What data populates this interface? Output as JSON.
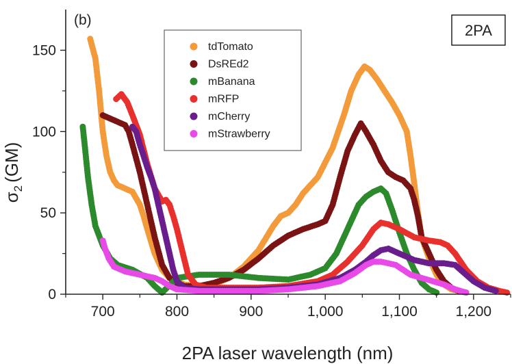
{
  "chart_data": {
    "type": "scatter",
    "panel_label": "(b)",
    "badge": "2PA",
    "xlabel": "2PA laser wavelength (nm)",
    "ylabel_main": "σ",
    "ylabel_sub": "2",
    "ylabel_unit": "(GM)",
    "xlim": [
      650,
      1250
    ],
    "ylim": [
      0,
      175
    ],
    "x_ticks": [
      700,
      800,
      900,
      1000,
      1100,
      1200
    ],
    "x_tick_labels": [
      "700",
      "800",
      "900",
      "1,000",
      "1,100",
      "1,200"
    ],
    "y_ticks": [
      0,
      50,
      100,
      150
    ],
    "y_tick_labels": [
      "0",
      "50",
      "100",
      "150"
    ],
    "legend_position": "top-left",
    "series": [
      {
        "name": "tdTomato",
        "color": "#f39a3a",
        "points": [
          [
            683,
            157
          ],
          [
            690,
            145
          ],
          [
            695,
            125
          ],
          [
            700,
            100
          ],
          [
            705,
            85
          ],
          [
            710,
            75
          ],
          [
            715,
            70
          ],
          [
            720,
            67
          ],
          [
            730,
            65
          ],
          [
            740,
            63
          ],
          [
            750,
            55
          ],
          [
            755,
            48
          ],
          [
            760,
            40
          ],
          [
            770,
            25
          ],
          [
            780,
            15
          ],
          [
            790,
            10
          ],
          [
            800,
            8
          ],
          [
            810,
            6
          ],
          [
            830,
            5
          ],
          [
            850,
            6
          ],
          [
            870,
            10
          ],
          [
            890,
            17
          ],
          [
            910,
            27
          ],
          [
            930,
            42
          ],
          [
            940,
            48
          ],
          [
            950,
            50
          ],
          [
            960,
            55
          ],
          [
            970,
            62
          ],
          [
            990,
            72
          ],
          [
            1010,
            90
          ],
          [
            1025,
            110
          ],
          [
            1035,
            125
          ],
          [
            1045,
            135
          ],
          [
            1053,
            140
          ],
          [
            1060,
            138
          ],
          [
            1070,
            132
          ],
          [
            1080,
            125
          ],
          [
            1090,
            118
          ],
          [
            1100,
            110
          ],
          [
            1110,
            100
          ],
          [
            1115,
            85
          ],
          [
            1120,
            68
          ],
          [
            1125,
            50
          ],
          [
            1130,
            35
          ],
          [
            1140,
            22
          ],
          [
            1150,
            12
          ],
          [
            1160,
            6
          ],
          [
            1170,
            3
          ],
          [
            1180,
            2
          ]
        ]
      },
      {
        "name": "DsREd2",
        "color": "#7a1414",
        "points": [
          [
            700,
            110
          ],
          [
            710,
            108
          ],
          [
            720,
            106
          ],
          [
            730,
            104
          ],
          [
            735,
            100
          ],
          [
            740,
            92
          ],
          [
            750,
            75
          ],
          [
            760,
            55
          ],
          [
            770,
            35
          ],
          [
            780,
            18
          ],
          [
            790,
            10
          ],
          [
            800,
            7
          ],
          [
            810,
            5
          ],
          [
            830,
            5
          ],
          [
            850,
            7
          ],
          [
            870,
            10
          ],
          [
            890,
            15
          ],
          [
            910,
            22
          ],
          [
            930,
            30
          ],
          [
            950,
            36
          ],
          [
            970,
            40
          ],
          [
            990,
            43
          ],
          [
            1000,
            45
          ],
          [
            1010,
            55
          ],
          [
            1020,
            72
          ],
          [
            1030,
            88
          ],
          [
            1040,
            98
          ],
          [
            1048,
            105
          ],
          [
            1055,
            100
          ],
          [
            1065,
            92
          ],
          [
            1075,
            82
          ],
          [
            1085,
            75
          ],
          [
            1095,
            72
          ],
          [
            1105,
            70
          ],
          [
            1115,
            65
          ],
          [
            1120,
            58
          ],
          [
            1125,
            48
          ],
          [
            1130,
            35
          ],
          [
            1140,
            25
          ],
          [
            1150,
            15
          ],
          [
            1160,
            8
          ],
          [
            1170,
            4
          ],
          [
            1180,
            2
          ],
          [
            1190,
            1
          ]
        ]
      },
      {
        "name": "mBanana",
        "color": "#2c8a2c",
        "points": [
          [
            673,
            103
          ],
          [
            676,
            90
          ],
          [
            680,
            72
          ],
          [
            685,
            55
          ],
          [
            690,
            42
          ],
          [
            700,
            30
          ],
          [
            710,
            22
          ],
          [
            720,
            18
          ],
          [
            740,
            15
          ],
          [
            760,
            10
          ],
          [
            770,
            5
          ],
          [
            780,
            1
          ],
          [
            800,
            10
          ],
          [
            830,
            12
          ],
          [
            870,
            12
          ],
          [
            910,
            10
          ],
          [
            950,
            9
          ],
          [
            980,
            12
          ],
          [
            1000,
            16
          ],
          [
            1015,
            25
          ],
          [
            1025,
            35
          ],
          [
            1035,
            45
          ],
          [
            1045,
            55
          ],
          [
            1055,
            60
          ],
          [
            1065,
            63
          ],
          [
            1075,
            65
          ],
          [
            1082,
            62
          ],
          [
            1090,
            52
          ],
          [
            1095,
            45
          ],
          [
            1100,
            38
          ],
          [
            1110,
            25
          ],
          [
            1120,
            15
          ],
          [
            1130,
            7
          ],
          [
            1140,
            3
          ],
          [
            1150,
            1
          ]
        ]
      },
      {
        "name": "mRFP",
        "color": "#e8302c",
        "points": [
          [
            718,
            120
          ],
          [
            725,
            123
          ],
          [
            733,
            118
          ],
          [
            740,
            110
          ],
          [
            750,
            98
          ],
          [
            760,
            80
          ],
          [
            770,
            65
          ],
          [
            780,
            57
          ],
          [
            785,
            58
          ],
          [
            790,
            55
          ],
          [
            795,
            48
          ],
          [
            800,
            40
          ],
          [
            808,
            25
          ],
          [
            815,
            12
          ],
          [
            825,
            6
          ],
          [
            840,
            4
          ],
          [
            870,
            4
          ],
          [
            910,
            4
          ],
          [
            950,
            5
          ],
          [
            990,
            8
          ],
          [
            1010,
            12
          ],
          [
            1030,
            20
          ],
          [
            1050,
            30
          ],
          [
            1065,
            40
          ],
          [
            1075,
            44
          ],
          [
            1085,
            43
          ],
          [
            1100,
            40
          ],
          [
            1120,
            35
          ],
          [
            1140,
            33
          ],
          [
            1155,
            32
          ],
          [
            1165,
            30
          ],
          [
            1175,
            25
          ],
          [
            1190,
            15
          ],
          [
            1205,
            8
          ],
          [
            1220,
            4
          ],
          [
            1235,
            2
          ],
          [
            1245,
            1
          ]
        ]
      },
      {
        "name": "mCherry",
        "color": "#6a1d8c",
        "points": [
          [
            740,
            103
          ],
          [
            745,
            100
          ],
          [
            750,
            92
          ],
          [
            755,
            85
          ],
          [
            760,
            78
          ],
          [
            765,
            72
          ],
          [
            770,
            65
          ],
          [
            775,
            55
          ],
          [
            780,
            45
          ],
          [
            785,
            35
          ],
          [
            790,
            25
          ],
          [
            795,
            15
          ],
          [
            800,
            8
          ],
          [
            810,
            4
          ],
          [
            830,
            3
          ],
          [
            870,
            3
          ],
          [
            910,
            3
          ],
          [
            950,
            4
          ],
          [
            990,
            6
          ],
          [
            1020,
            10
          ],
          [
            1040,
            15
          ],
          [
            1055,
            20
          ],
          [
            1065,
            24
          ],
          [
            1075,
            27
          ],
          [
            1085,
            28
          ],
          [
            1100,
            25
          ],
          [
            1120,
            21
          ],
          [
            1140,
            19
          ],
          [
            1160,
            19
          ],
          [
            1175,
            18
          ],
          [
            1190,
            12
          ],
          [
            1200,
            8
          ],
          [
            1215,
            4
          ],
          [
            1230,
            2
          ]
        ]
      },
      {
        "name": "mStrawberry",
        "color": "#e84ae8",
        "points": [
          [
            700,
            33
          ],
          [
            703,
            28
          ],
          [
            708,
            22
          ],
          [
            715,
            17
          ],
          [
            730,
            14
          ],
          [
            750,
            12
          ],
          [
            770,
            10
          ],
          [
            780,
            8
          ],
          [
            790,
            5
          ],
          [
            800,
            3
          ],
          [
            830,
            2
          ],
          [
            870,
            2
          ],
          [
            910,
            2
          ],
          [
            950,
            3
          ],
          [
            990,
            5
          ],
          [
            1020,
            8
          ],
          [
            1040,
            13
          ],
          [
            1055,
            18
          ],
          [
            1065,
            20
          ],
          [
            1075,
            20
          ],
          [
            1085,
            19
          ],
          [
            1095,
            18
          ],
          [
            1105,
            15
          ],
          [
            1115,
            12
          ],
          [
            1130,
            10
          ],
          [
            1145,
            8
          ],
          [
            1160,
            6
          ],
          [
            1175,
            3
          ],
          [
            1190,
            1
          ]
        ]
      }
    ]
  }
}
